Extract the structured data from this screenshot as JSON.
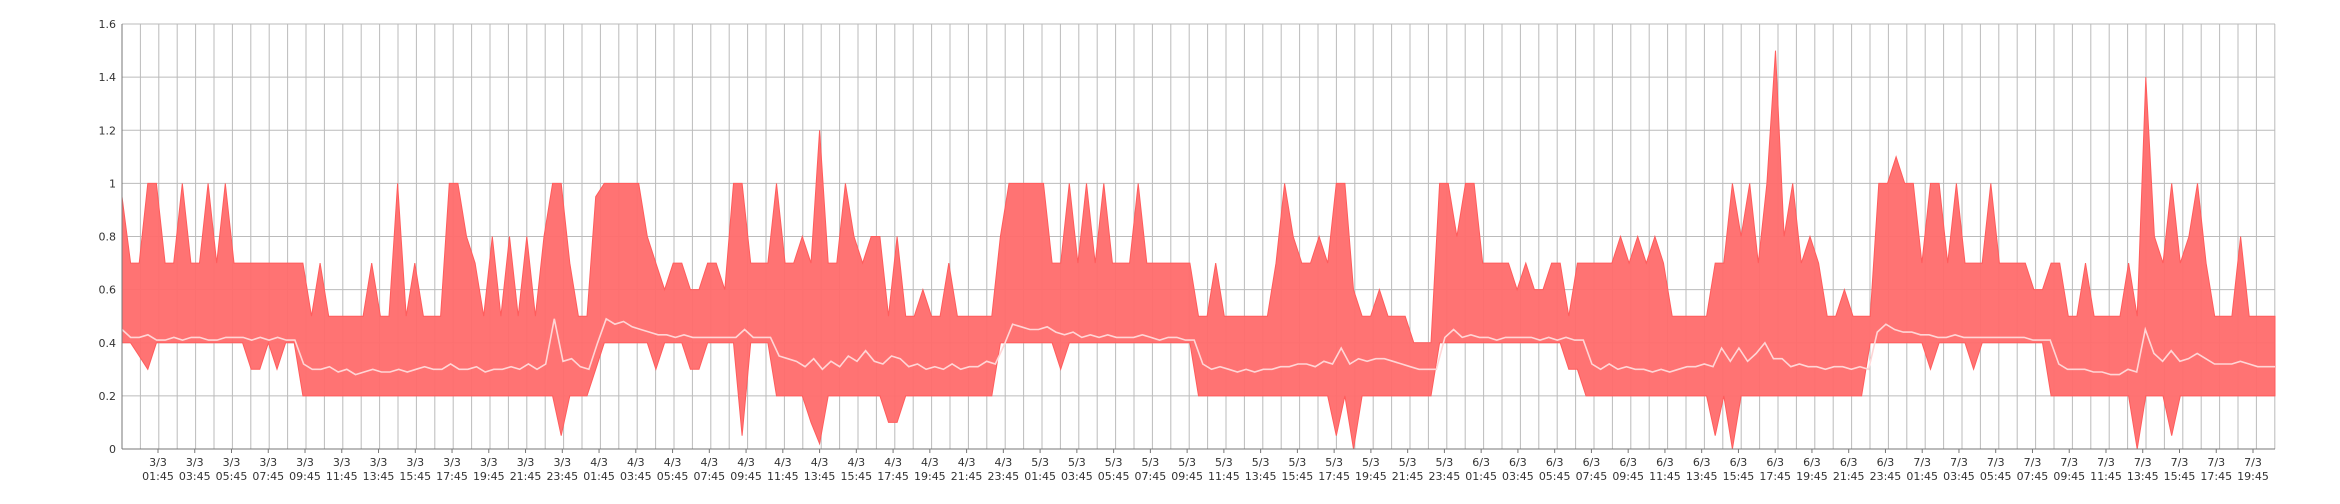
{
  "chart_data": {
    "type": "area",
    "title": "",
    "xlabel": "",
    "ylabel": "",
    "ylim": [
      0,
      1.6
    ],
    "y_ticks": [
      "0",
      "0.2",
      "0.4",
      "0.6",
      "0.8",
      "1",
      "1.2",
      "1.4",
      "1.6"
    ],
    "grid": true,
    "x_tick_labels": [
      {
        "date": "3/3",
        "time": "01:45"
      },
      {
        "date": "3/3",
        "time": "03:45"
      },
      {
        "date": "3/3",
        "time": "05:45"
      },
      {
        "date": "3/3",
        "time": "07:45"
      },
      {
        "date": "3/3",
        "time": "09:45"
      },
      {
        "date": "3/3",
        "time": "11:45"
      },
      {
        "date": "3/3",
        "time": "13:45"
      },
      {
        "date": "3/3",
        "time": "15:45"
      },
      {
        "date": "3/3",
        "time": "17:45"
      },
      {
        "date": "3/3",
        "time": "19:45"
      },
      {
        "date": "3/3",
        "time": "21:45"
      },
      {
        "date": "3/3",
        "time": "23:45"
      },
      {
        "date": "4/3",
        "time": "01:45"
      },
      {
        "date": "4/3",
        "time": "03:45"
      },
      {
        "date": "4/3",
        "time": "05:45"
      },
      {
        "date": "4/3",
        "time": "07:45"
      },
      {
        "date": "4/3",
        "time": "09:45"
      },
      {
        "date": "4/3",
        "time": "11:45"
      },
      {
        "date": "4/3",
        "time": "13:45"
      },
      {
        "date": "4/3",
        "time": "15:45"
      },
      {
        "date": "4/3",
        "time": "17:45"
      },
      {
        "date": "4/3",
        "time": "19:45"
      },
      {
        "date": "4/3",
        "time": "21:45"
      },
      {
        "date": "4/3",
        "time": "23:45"
      },
      {
        "date": "5/3",
        "time": "01:45"
      },
      {
        "date": "5/3",
        "time": "03:45"
      },
      {
        "date": "5/3",
        "time": "05:45"
      },
      {
        "date": "5/3",
        "time": "07:45"
      },
      {
        "date": "5/3",
        "time": "09:45"
      },
      {
        "date": "5/3",
        "time": "11:45"
      },
      {
        "date": "5/3",
        "time": "13:45"
      },
      {
        "date": "5/3",
        "time": "15:45"
      },
      {
        "date": "5/3",
        "time": "17:45"
      },
      {
        "date": "5/3",
        "time": "19:45"
      },
      {
        "date": "5/3",
        "time": "21:45"
      },
      {
        "date": "5/3",
        "time": "23:45"
      },
      {
        "date": "6/3",
        "time": "01:45"
      },
      {
        "date": "6/3",
        "time": "03:45"
      },
      {
        "date": "6/3",
        "time": "05:45"
      },
      {
        "date": "6/3",
        "time": "07:45"
      },
      {
        "date": "6/3",
        "time": "09:45"
      },
      {
        "date": "6/3",
        "time": "11:45"
      },
      {
        "date": "6/3",
        "time": "13:45"
      },
      {
        "date": "6/3",
        "time": "15:45"
      },
      {
        "date": "6/3",
        "time": "17:45"
      },
      {
        "date": "6/3",
        "time": "19:45"
      },
      {
        "date": "6/3",
        "time": "21:45"
      },
      {
        "date": "6/3",
        "time": "23:45"
      },
      {
        "date": "7/3",
        "time": "01:45"
      },
      {
        "date": "7/3",
        "time": "03:45"
      },
      {
        "date": "7/3",
        "time": "05:45"
      },
      {
        "date": "7/3",
        "time": "07:45"
      },
      {
        "date": "7/3",
        "time": "09:45"
      },
      {
        "date": "7/3",
        "time": "11:45"
      },
      {
        "date": "7/3",
        "time": "13:45"
      },
      {
        "date": "7/3",
        "time": "15:45"
      },
      {
        "date": "7/3",
        "time": "17:45"
      },
      {
        "date": "7/3",
        "time": "19:45"
      }
    ],
    "colors": {
      "band": "#ff6b6b",
      "band_edge": "#ff5c5c",
      "average": "#ffd6d6",
      "grid": "#bbbbbb",
      "axis": "#777777"
    },
    "series": [
      {
        "kind": "range",
        "upper": [
          0.95,
          0.7,
          0.7,
          1.0,
          1.0,
          0.7,
          0.7,
          1.0,
          0.7,
          0.7,
          1.0,
          0.7,
          1.0,
          0.7,
          0.7,
          0.7,
          0.7,
          0.7,
          0.7,
          0.7,
          0.7,
          0.7,
          0.5,
          0.7,
          0.5,
          0.5,
          0.5,
          0.5,
          0.5,
          0.7,
          0.5,
          0.5,
          1.0,
          0.5,
          0.7,
          0.5,
          0.5,
          0.5,
          1.0,
          1.0,
          0.8,
          0.7,
          0.5,
          0.8,
          0.5,
          0.8,
          0.5,
          0.8,
          0.5,
          0.8,
          1.0,
          1.0,
          0.7,
          0.5,
          0.5,
          0.95,
          1.0,
          1.0,
          1.0,
          1.0,
          1.0,
          0.8,
          0.7,
          0.6,
          0.7,
          0.7,
          0.6,
          0.6,
          0.7,
          0.7,
          0.6,
          1.0,
          1.0,
          0.7,
          0.7,
          0.7,
          1.0,
          0.7,
          0.7,
          0.8,
          0.7,
          1.2,
          0.7,
          0.7,
          1.0,
          0.8,
          0.7,
          0.8,
          0.8,
          0.5,
          0.8,
          0.5,
          0.5,
          0.6,
          0.5,
          0.5,
          0.7,
          0.5,
          0.5,
          0.5,
          0.5,
          0.5,
          0.8,
          1.0,
          1.0,
          1.0,
          1.0,
          1.0,
          0.7,
          0.7,
          1.0,
          0.7,
          1.0,
          0.7,
          1.0,
          0.7,
          0.7,
          0.7,
          1.0,
          0.7,
          0.7,
          0.7,
          0.7,
          0.7,
          0.7,
          0.5,
          0.5,
          0.7,
          0.5,
          0.5,
          0.5,
          0.5,
          0.5,
          0.5,
          0.7,
          1.0,
          0.8,
          0.7,
          0.7,
          0.8,
          0.7,
          1.0,
          1.0,
          0.6,
          0.5,
          0.5,
          0.6,
          0.5,
          0.5,
          0.5,
          0.4,
          0.4,
          0.4,
          1.0,
          1.0,
          0.8,
          1.0,
          1.0,
          0.7,
          0.7,
          0.7,
          0.7,
          0.6,
          0.7,
          0.6,
          0.6,
          0.7,
          0.7,
          0.5,
          0.7,
          0.7,
          0.7,
          0.7,
          0.7,
          0.8,
          0.7,
          0.8,
          0.7,
          0.8,
          0.7,
          0.5,
          0.5,
          0.5,
          0.5,
          0.5,
          0.7,
          0.7,
          1.0,
          0.8,
          1.0,
          0.7,
          1.0,
          1.5,
          0.8,
          1.0,
          0.7,
          0.8,
          0.7,
          0.5,
          0.5,
          0.6,
          0.5,
          0.5,
          0.5,
          1.0,
          1.0,
          1.1,
          1.0,
          1.0,
          0.7,
          1.0,
          1.0,
          0.7,
          1.0,
          0.7,
          0.7,
          0.7,
          1.0,
          0.7,
          0.7,
          0.7,
          0.7,
          0.6,
          0.6,
          0.7,
          0.7,
          0.5,
          0.5,
          0.7,
          0.5,
          0.5,
          0.5,
          0.5,
          0.7,
          0.5,
          1.4,
          0.8,
          0.7,
          1.0,
          0.7,
          0.8,
          1.0,
          0.7,
          0.5,
          0.5,
          0.5,
          0.8,
          0.5,
          0.5,
          0.5,
          0.5
        ],
        "lower": [
          0.4,
          0.4,
          0.35,
          0.3,
          0.4,
          0.4,
          0.4,
          0.4,
          0.4,
          0.4,
          0.4,
          0.4,
          0.4,
          0.4,
          0.4,
          0.3,
          0.3,
          0.4,
          0.3,
          0.4,
          0.4,
          0.2,
          0.2,
          0.2,
          0.2,
          0.2,
          0.2,
          0.2,
          0.2,
          0.2,
          0.2,
          0.2,
          0.2,
          0.2,
          0.2,
          0.2,
          0.2,
          0.2,
          0.2,
          0.2,
          0.2,
          0.2,
          0.2,
          0.2,
          0.2,
          0.2,
          0.2,
          0.2,
          0.2,
          0.2,
          0.2,
          0.05,
          0.2,
          0.2,
          0.2,
          0.3,
          0.4,
          0.4,
          0.4,
          0.4,
          0.4,
          0.4,
          0.3,
          0.4,
          0.4,
          0.4,
          0.3,
          0.3,
          0.4,
          0.4,
          0.4,
          0.4,
          0.05,
          0.4,
          0.4,
          0.4,
          0.2,
          0.2,
          0.2,
          0.2,
          0.1,
          0.02,
          0.2,
          0.2,
          0.2,
          0.2,
          0.2,
          0.2,
          0.2,
          0.1,
          0.1,
          0.2,
          0.2,
          0.2,
          0.2,
          0.2,
          0.2,
          0.2,
          0.2,
          0.2,
          0.2,
          0.2,
          0.4,
          0.4,
          0.4,
          0.4,
          0.4,
          0.4,
          0.4,
          0.3,
          0.4,
          0.4,
          0.4,
          0.4,
          0.4,
          0.4,
          0.4,
          0.4,
          0.4,
          0.4,
          0.4,
          0.4,
          0.4,
          0.4,
          0.4,
          0.2,
          0.2,
          0.2,
          0.2,
          0.2,
          0.2,
          0.2,
          0.2,
          0.2,
          0.2,
          0.2,
          0.2,
          0.2,
          0.2,
          0.2,
          0.2,
          0.05,
          0.2,
          0.0,
          0.2,
          0.2,
          0.2,
          0.2,
          0.2,
          0.2,
          0.2,
          0.2,
          0.2,
          0.4,
          0.4,
          0.4,
          0.4,
          0.4,
          0.4,
          0.4,
          0.4,
          0.4,
          0.4,
          0.4,
          0.4,
          0.4,
          0.4,
          0.4,
          0.3,
          0.3,
          0.2,
          0.2,
          0.2,
          0.2,
          0.2,
          0.2,
          0.2,
          0.2,
          0.2,
          0.2,
          0.2,
          0.2,
          0.2,
          0.2,
          0.2,
          0.05,
          0.2,
          0.0,
          0.2,
          0.2,
          0.2,
          0.2,
          0.2,
          0.2,
          0.2,
          0.2,
          0.2,
          0.2,
          0.2,
          0.2,
          0.2,
          0.2,
          0.2,
          0.4,
          0.4,
          0.4,
          0.4,
          0.4,
          0.4,
          0.4,
          0.3,
          0.4,
          0.4,
          0.4,
          0.4,
          0.3,
          0.4,
          0.4,
          0.4,
          0.4,
          0.4,
          0.4,
          0.4,
          0.4,
          0.2,
          0.2,
          0.2,
          0.2,
          0.2,
          0.2,
          0.2,
          0.2,
          0.2,
          0.2,
          0.0,
          0.2,
          0.2,
          0.2,
          0.05,
          0.2,
          0.2,
          0.2,
          0.2,
          0.2,
          0.2,
          0.2,
          0.2,
          0.2,
          0.2,
          0.2,
          0.2
        ]
      },
      {
        "kind": "line",
        "values": [
          0.45,
          0.42,
          0.42,
          0.43,
          0.41,
          0.41,
          0.42,
          0.41,
          0.42,
          0.42,
          0.41,
          0.41,
          0.42,
          0.42,
          0.42,
          0.41,
          0.42,
          0.41,
          0.42,
          0.41,
          0.41,
          0.32,
          0.3,
          0.3,
          0.31,
          0.29,
          0.3,
          0.28,
          0.29,
          0.3,
          0.29,
          0.29,
          0.3,
          0.29,
          0.3,
          0.31,
          0.3,
          0.3,
          0.32,
          0.3,
          0.3,
          0.31,
          0.29,
          0.3,
          0.3,
          0.31,
          0.3,
          0.32,
          0.3,
          0.32,
          0.49,
          0.33,
          0.34,
          0.31,
          0.3,
          0.4,
          0.49,
          0.47,
          0.48,
          0.46,
          0.45,
          0.44,
          0.43,
          0.43,
          0.42,
          0.43,
          0.42,
          0.42,
          0.42,
          0.42,
          0.42,
          0.42,
          0.45,
          0.42,
          0.42,
          0.42,
          0.35,
          0.34,
          0.33,
          0.31,
          0.34,
          0.3,
          0.33,
          0.31,
          0.35,
          0.33,
          0.37,
          0.33,
          0.32,
          0.35,
          0.34,
          0.31,
          0.32,
          0.3,
          0.31,
          0.3,
          0.32,
          0.3,
          0.31,
          0.31,
          0.33,
          0.32,
          0.39,
          0.47,
          0.46,
          0.45,
          0.45,
          0.46,
          0.44,
          0.43,
          0.44,
          0.42,
          0.43,
          0.42,
          0.43,
          0.42,
          0.42,
          0.42,
          0.43,
          0.42,
          0.41,
          0.42,
          0.42,
          0.41,
          0.41,
          0.32,
          0.3,
          0.31,
          0.3,
          0.29,
          0.3,
          0.29,
          0.3,
          0.3,
          0.31,
          0.31,
          0.32,
          0.32,
          0.31,
          0.33,
          0.32,
          0.38,
          0.32,
          0.34,
          0.33,
          0.34,
          0.34,
          0.33,
          0.32,
          0.31,
          0.3,
          0.3,
          0.3,
          0.42,
          0.45,
          0.42,
          0.43,
          0.42,
          0.42,
          0.41,
          0.42,
          0.42,
          0.42,
          0.42,
          0.41,
          0.42,
          0.41,
          0.42,
          0.41,
          0.41,
          0.32,
          0.3,
          0.32,
          0.3,
          0.31,
          0.3,
          0.3,
          0.29,
          0.3,
          0.29,
          0.3,
          0.31,
          0.31,
          0.32,
          0.31,
          0.38,
          0.33,
          0.38,
          0.33,
          0.36,
          0.4,
          0.34,
          0.34,
          0.31,
          0.32,
          0.31,
          0.31,
          0.3,
          0.31,
          0.31,
          0.3,
          0.31,
          0.3,
          0.44,
          0.47,
          0.45,
          0.44,
          0.44,
          0.43,
          0.43,
          0.42,
          0.42,
          0.43,
          0.42,
          0.42,
          0.42,
          0.42,
          0.42,
          0.42,
          0.42,
          0.42,
          0.41,
          0.41,
          0.41,
          0.32,
          0.3,
          0.3,
          0.3,
          0.29,
          0.29,
          0.28,
          0.28,
          0.3,
          0.29,
          0.45,
          0.36,
          0.33,
          0.37,
          0.33,
          0.34,
          0.36,
          0.34,
          0.32,
          0.32,
          0.32,
          0.33,
          0.32,
          0.31,
          0.31,
          0.31
        ]
      }
    ]
  }
}
